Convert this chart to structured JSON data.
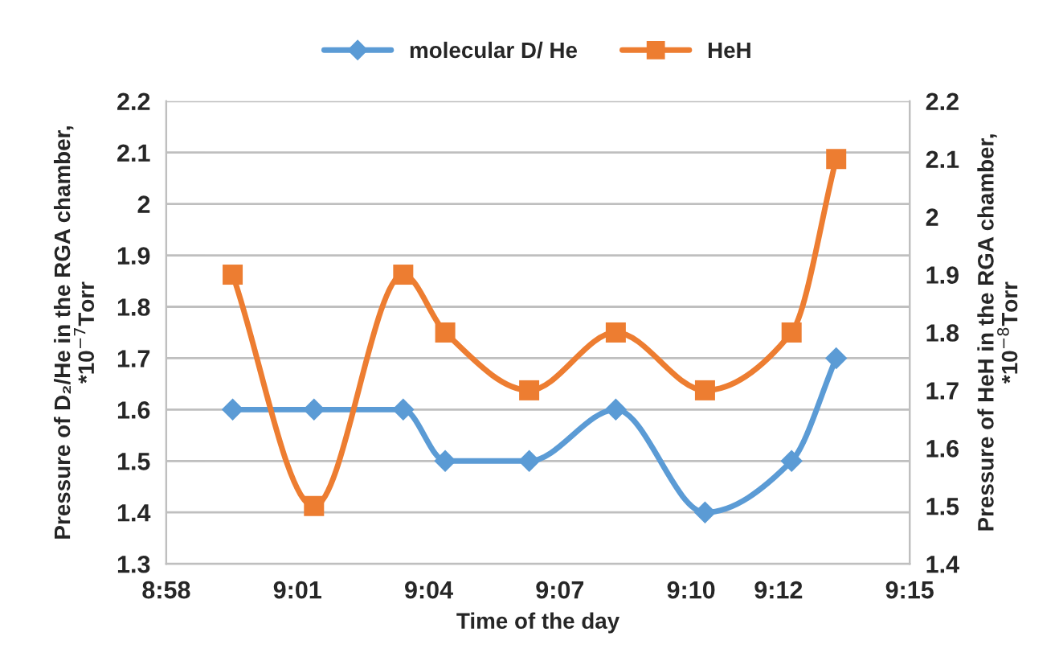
{
  "chart_data": {
    "type": "line",
    "xlabel": "Time of the day",
    "ylabel": "Pressure of D₂/He in the RGA chamber,\n*10$^{−7}$Torr",
    "y2label": "Pressure of HeH in the RGA chamber,\n*10$^{−8}$Torr",
    "series": [
      {
        "name": "molecular D/ He",
        "color": "#5b9bd5",
        "marker": "diamond",
        "x": [
          8.992,
          9.023,
          9.057,
          9.073,
          9.105,
          9.138,
          9.172,
          9.205,
          9.222
        ],
        "values": [
          1.6,
          1.6,
          1.6,
          1.5,
          1.5,
          1.6,
          1.4,
          1.5,
          1.7
        ]
      },
      {
        "name": "HeH",
        "color": "#ed7d31",
        "marker": "square",
        "axis": "y2",
        "x": [
          8.992,
          9.023,
          9.057,
          9.073,
          9.105,
          9.138,
          9.172,
          9.205,
          9.222
        ],
        "values": [
          1.9,
          1.5,
          1.9,
          1.8,
          1.7,
          1.8,
          1.7,
          1.8,
          2.1
        ]
      }
    ],
    "xlim": [
      8.9667,
      9.25
    ],
    "xticks": [
      {
        "value": 8.9667,
        "label": "8:58"
      },
      {
        "value": 9.0167,
        "label": "9:01"
      },
      {
        "value": 9.0667,
        "label": "9:04"
      },
      {
        "value": 9.1167,
        "label": "9:07"
      },
      {
        "value": 9.1667,
        "label": "9:10"
      },
      {
        "value": 9.2,
        "label": "9:12"
      },
      {
        "value": 9.25,
        "label": "9:15"
      }
    ],
    "ylim": [
      1.3,
      2.2
    ],
    "yticks": [
      1.3,
      1.4,
      1.5,
      1.6,
      1.7,
      1.8,
      1.9,
      2,
      2.1,
      2.2
    ],
    "y2lim": [
      1.4,
      2.2
    ],
    "y2ticks": [
      1.4,
      1.5,
      1.6,
      1.7,
      1.8,
      1.9,
      2,
      2.1,
      2.2
    ],
    "grid": "y",
    "legend": "top",
    "line_style": "solid"
  }
}
